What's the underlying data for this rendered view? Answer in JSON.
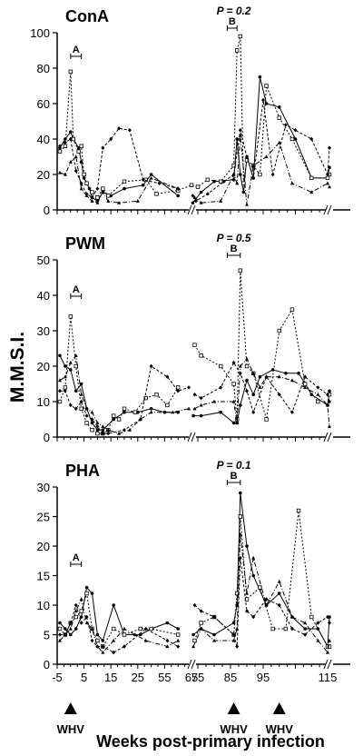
{
  "figure": {
    "ylabel": "M.M.S.I.",
    "xlabel": "Weeks post-primary infection",
    "x_ticks": [
      "-5",
      "5",
      "15",
      "25",
      "55",
      "65",
      "75",
      "85",
      "95",
      "115"
    ],
    "x_tick_values": [
      -5,
      5,
      15,
      25,
      35,
      45,
      55,
      65,
      75,
      95
    ],
    "x_axis_break_text": "//",
    "whv_label": "WHV",
    "whv_weeks": [
      0,
      66,
      80
    ]
  },
  "chart_data": [
    {
      "type": "line",
      "title": "ConA",
      "ylim": [
        0,
        100
      ],
      "yticks": [
        "0",
        "20",
        "40",
        "60",
        "80",
        "100"
      ],
      "p_value": "P = 0.2",
      "bracket_a": {
        "label": "A",
        "x_range": [
          0,
          4
        ]
      },
      "bracket_b": {
        "label": "B",
        "x_range": [
          64,
          67
        ]
      },
      "series": [
        {
          "x": [
            -4,
            -2,
            0,
            1,
            3,
            4,
            5,
            7,
            8,
            10,
            12,
            15,
            20,
            27,
            30,
            40,
            47,
            56,
            60,
            66,
            67,
            68,
            69,
            70,
            72,
            74,
            76,
            80,
            85,
            90,
            95,
            98
          ],
          "y": [
            35,
            40,
            44,
            40,
            35,
            27,
            18,
            12,
            7,
            5,
            10,
            8,
            12,
            14,
            20,
            8,
            4,
            10,
            16,
            17,
            40,
            20,
            10,
            30,
            18,
            75,
            60,
            58,
            40,
            18,
            18,
            24
          ]
        },
        {
          "x": [
            -4,
            -2,
            0,
            1,
            3,
            4,
            5,
            6,
            8,
            10,
            12,
            14,
            20,
            28,
            32,
            40,
            45,
            55,
            58,
            62,
            66,
            67,
            68,
            69,
            70,
            72,
            74,
            76,
            80,
            84,
            90,
            95,
            98
          ],
          "y": [
            33,
            36,
            78,
            40,
            33,
            36,
            20,
            15,
            10,
            7,
            12,
            8,
            16,
            17,
            9,
            11,
            14,
            13,
            17,
            16,
            25,
            90,
            98,
            15,
            28,
            25,
            20,
            70,
            52,
            40,
            18,
            18,
            20
          ]
        },
        {
          "x": [
            -4,
            -2,
            0,
            2,
            4,
            6,
            8,
            10,
            12,
            14,
            18,
            25,
            30,
            40,
            50,
            56,
            62,
            66,
            67,
            68,
            70,
            72,
            76,
            80,
            84,
            90,
            95,
            98
          ],
          "y": [
            21,
            20,
            27,
            30,
            12,
            8,
            5,
            4,
            10,
            5,
            4,
            5,
            18,
            12,
            7,
            4,
            5,
            20,
            15,
            42,
            3,
            25,
            30,
            38,
            15,
            10,
            15,
            13
          ]
        },
        {
          "x": [
            -4,
            -2,
            0,
            2,
            4,
            6,
            8,
            10,
            12,
            15,
            18,
            22,
            27,
            33,
            40,
            47,
            52,
            58,
            63,
            66,
            68,
            70,
            72,
            75,
            78,
            82,
            85,
            90,
            95,
            98
          ],
          "y": [
            36,
            38,
            40,
            22,
            15,
            9,
            7,
            12,
            35,
            40,
            46,
            45,
            17,
            15,
            12,
            8,
            5,
            9,
            16,
            20,
            45,
            30,
            18,
            62,
            20,
            48,
            45,
            40,
            20,
            35
          ]
        }
      ]
    },
    {
      "type": "line",
      "title": "PWM",
      "ylim": [
        0,
        50
      ],
      "yticks": [
        "0",
        "10",
        "20",
        "30",
        "40",
        "50"
      ],
      "p_value": "P = 0.5",
      "bracket_a": {
        "label": "A",
        "x_range": [
          0,
          4
        ]
      },
      "bracket_b": {
        "label": "B",
        "x_range": [
          64,
          68
        ]
      },
      "series": [
        {
          "x": [
            -4,
            -2,
            0,
            2,
            4,
            6,
            8,
            10,
            12,
            16,
            20,
            25,
            30,
            35,
            40,
            48,
            56,
            62,
            66,
            67,
            68,
            70,
            72,
            74,
            78,
            82,
            86,
            90,
            95,
            98
          ],
          "y": [
            23,
            20,
            19,
            13,
            15,
            8,
            4,
            2,
            2,
            5,
            7,
            7,
            8,
            7,
            7,
            6,
            6,
            7,
            4,
            4,
            9,
            16,
            12,
            17,
            19,
            18,
            18,
            12,
            9,
            13
          ]
        },
        {
          "x": [
            -4,
            -2,
            0,
            2,
            4,
            6,
            8,
            10,
            12,
            14,
            16,
            18,
            20,
            24,
            28,
            32,
            36,
            40,
            50,
            56,
            62,
            66,
            67,
            68,
            70,
            72,
            76,
            80,
            84,
            88,
            92,
            98
          ],
          "y": [
            10,
            14,
            34,
            20,
            8,
            4,
            2,
            1,
            1,
            2,
            6,
            5,
            8,
            7,
            11,
            12,
            9,
            14,
            26,
            23,
            20,
            15,
            5,
            47,
            20,
            18,
            5,
            30,
            36,
            15,
            10,
            12
          ]
        },
        {
          "x": [
            -4,
            -2,
            0,
            2,
            4,
            6,
            8,
            10,
            12,
            14,
            18,
            22,
            26,
            30,
            38,
            44,
            50,
            56,
            60,
            66,
            67,
            68,
            70,
            72,
            74,
            76,
            80,
            84,
            88,
            92,
            95,
            98
          ],
          "y": [
            16,
            17,
            21,
            23,
            12,
            8,
            7,
            4,
            3,
            2,
            1,
            2,
            5,
            7,
            7,
            8,
            8,
            9,
            10,
            10,
            4,
            20,
            22,
            18,
            14,
            17,
            17,
            16,
            14,
            12,
            9,
            3
          ]
        },
        {
          "x": [
            -4,
            -2,
            0,
            2,
            4,
            6,
            8,
            10,
            12,
            14,
            20,
            26,
            30,
            36,
            40,
            44,
            50,
            56,
            62,
            66,
            68,
            70,
            72,
            76,
            80,
            84,
            88,
            92,
            95,
            98
          ],
          "y": [
            13,
            13,
            9,
            8,
            10,
            6,
            5,
            3,
            1,
            1,
            2,
            5,
            20,
            17,
            13,
            14,
            12,
            11,
            14,
            21,
            18,
            13,
            7,
            17,
            12,
            7,
            17,
            14,
            12,
            10
          ]
        }
      ]
    },
    {
      "type": "line",
      "title": "PHA",
      "ylim": [
        0,
        30
      ],
      "yticks": [
        "0",
        "5",
        "10",
        "15",
        "20",
        "25",
        "30"
      ],
      "p_value": "P = 0.1",
      "bracket_a": {
        "label": "A",
        "x_range": [
          0,
          4
        ]
      },
      "bracket_b": {
        "label": "B",
        "x_range": [
          64,
          68
        ]
      },
      "series": [
        {
          "x": [
            -4,
            -2,
            0,
            2,
            4,
            6,
            8,
            10,
            12,
            16,
            20,
            26,
            30,
            36,
            40,
            48,
            56,
            60,
            66,
            67,
            68,
            70,
            72,
            76,
            80,
            84,
            88,
            92,
            95,
            98
          ],
          "y": [
            7,
            6,
            5,
            6,
            8,
            13,
            12,
            5,
            4,
            10,
            5,
            5,
            6,
            7,
            6,
            5,
            6,
            5,
            7,
            10,
            29,
            20,
            15,
            10,
            12,
            8,
            6,
            6,
            3,
            8
          ]
        },
        {
          "x": [
            -4,
            -2,
            0,
            2,
            4,
            6,
            8,
            10,
            12,
            16,
            20,
            26,
            30,
            40,
            50,
            56,
            60,
            66,
            67,
            68,
            70,
            74,
            78,
            82,
            86,
            90,
            95,
            98
          ],
          "y": [
            6,
            5,
            7,
            8,
            9,
            12,
            6,
            4,
            3,
            6,
            5,
            6,
            6,
            5,
            4,
            7,
            8,
            5,
            12,
            25,
            11,
            13,
            6,
            6,
            26,
            8,
            3,
            3
          ]
        },
        {
          "x": [
            -4,
            -2,
            0,
            2,
            4,
            6,
            8,
            10,
            12,
            16,
            20,
            24,
            28,
            36,
            40,
            48,
            56,
            60,
            66,
            67,
            68,
            70,
            72,
            76,
            80,
            84,
            88,
            92,
            95,
            98
          ],
          "y": [
            4,
            5,
            6,
            9,
            11,
            7,
            6,
            3,
            2,
            4,
            6,
            5,
            4,
            3,
            4,
            3,
            6,
            4,
            4,
            6,
            22,
            12,
            18,
            10,
            14,
            8,
            7,
            4,
            2,
            4
          ]
        },
        {
          "x": [
            -4,
            -2,
            0,
            2,
            4,
            6,
            8,
            10,
            12,
            16,
            20,
            28,
            36,
            40,
            50,
            56,
            60,
            66,
            67,
            68,
            70,
            72,
            76,
            80,
            84,
            88,
            92,
            95,
            98
          ],
          "y": [
            5,
            5,
            7,
            10,
            7,
            8,
            4,
            3,
            3,
            2,
            3,
            6,
            4,
            3,
            10,
            9,
            8,
            5,
            3,
            18,
            9,
            8,
            11,
            10,
            6,
            5,
            7,
            8,
            7
          ]
        }
      ]
    }
  ]
}
